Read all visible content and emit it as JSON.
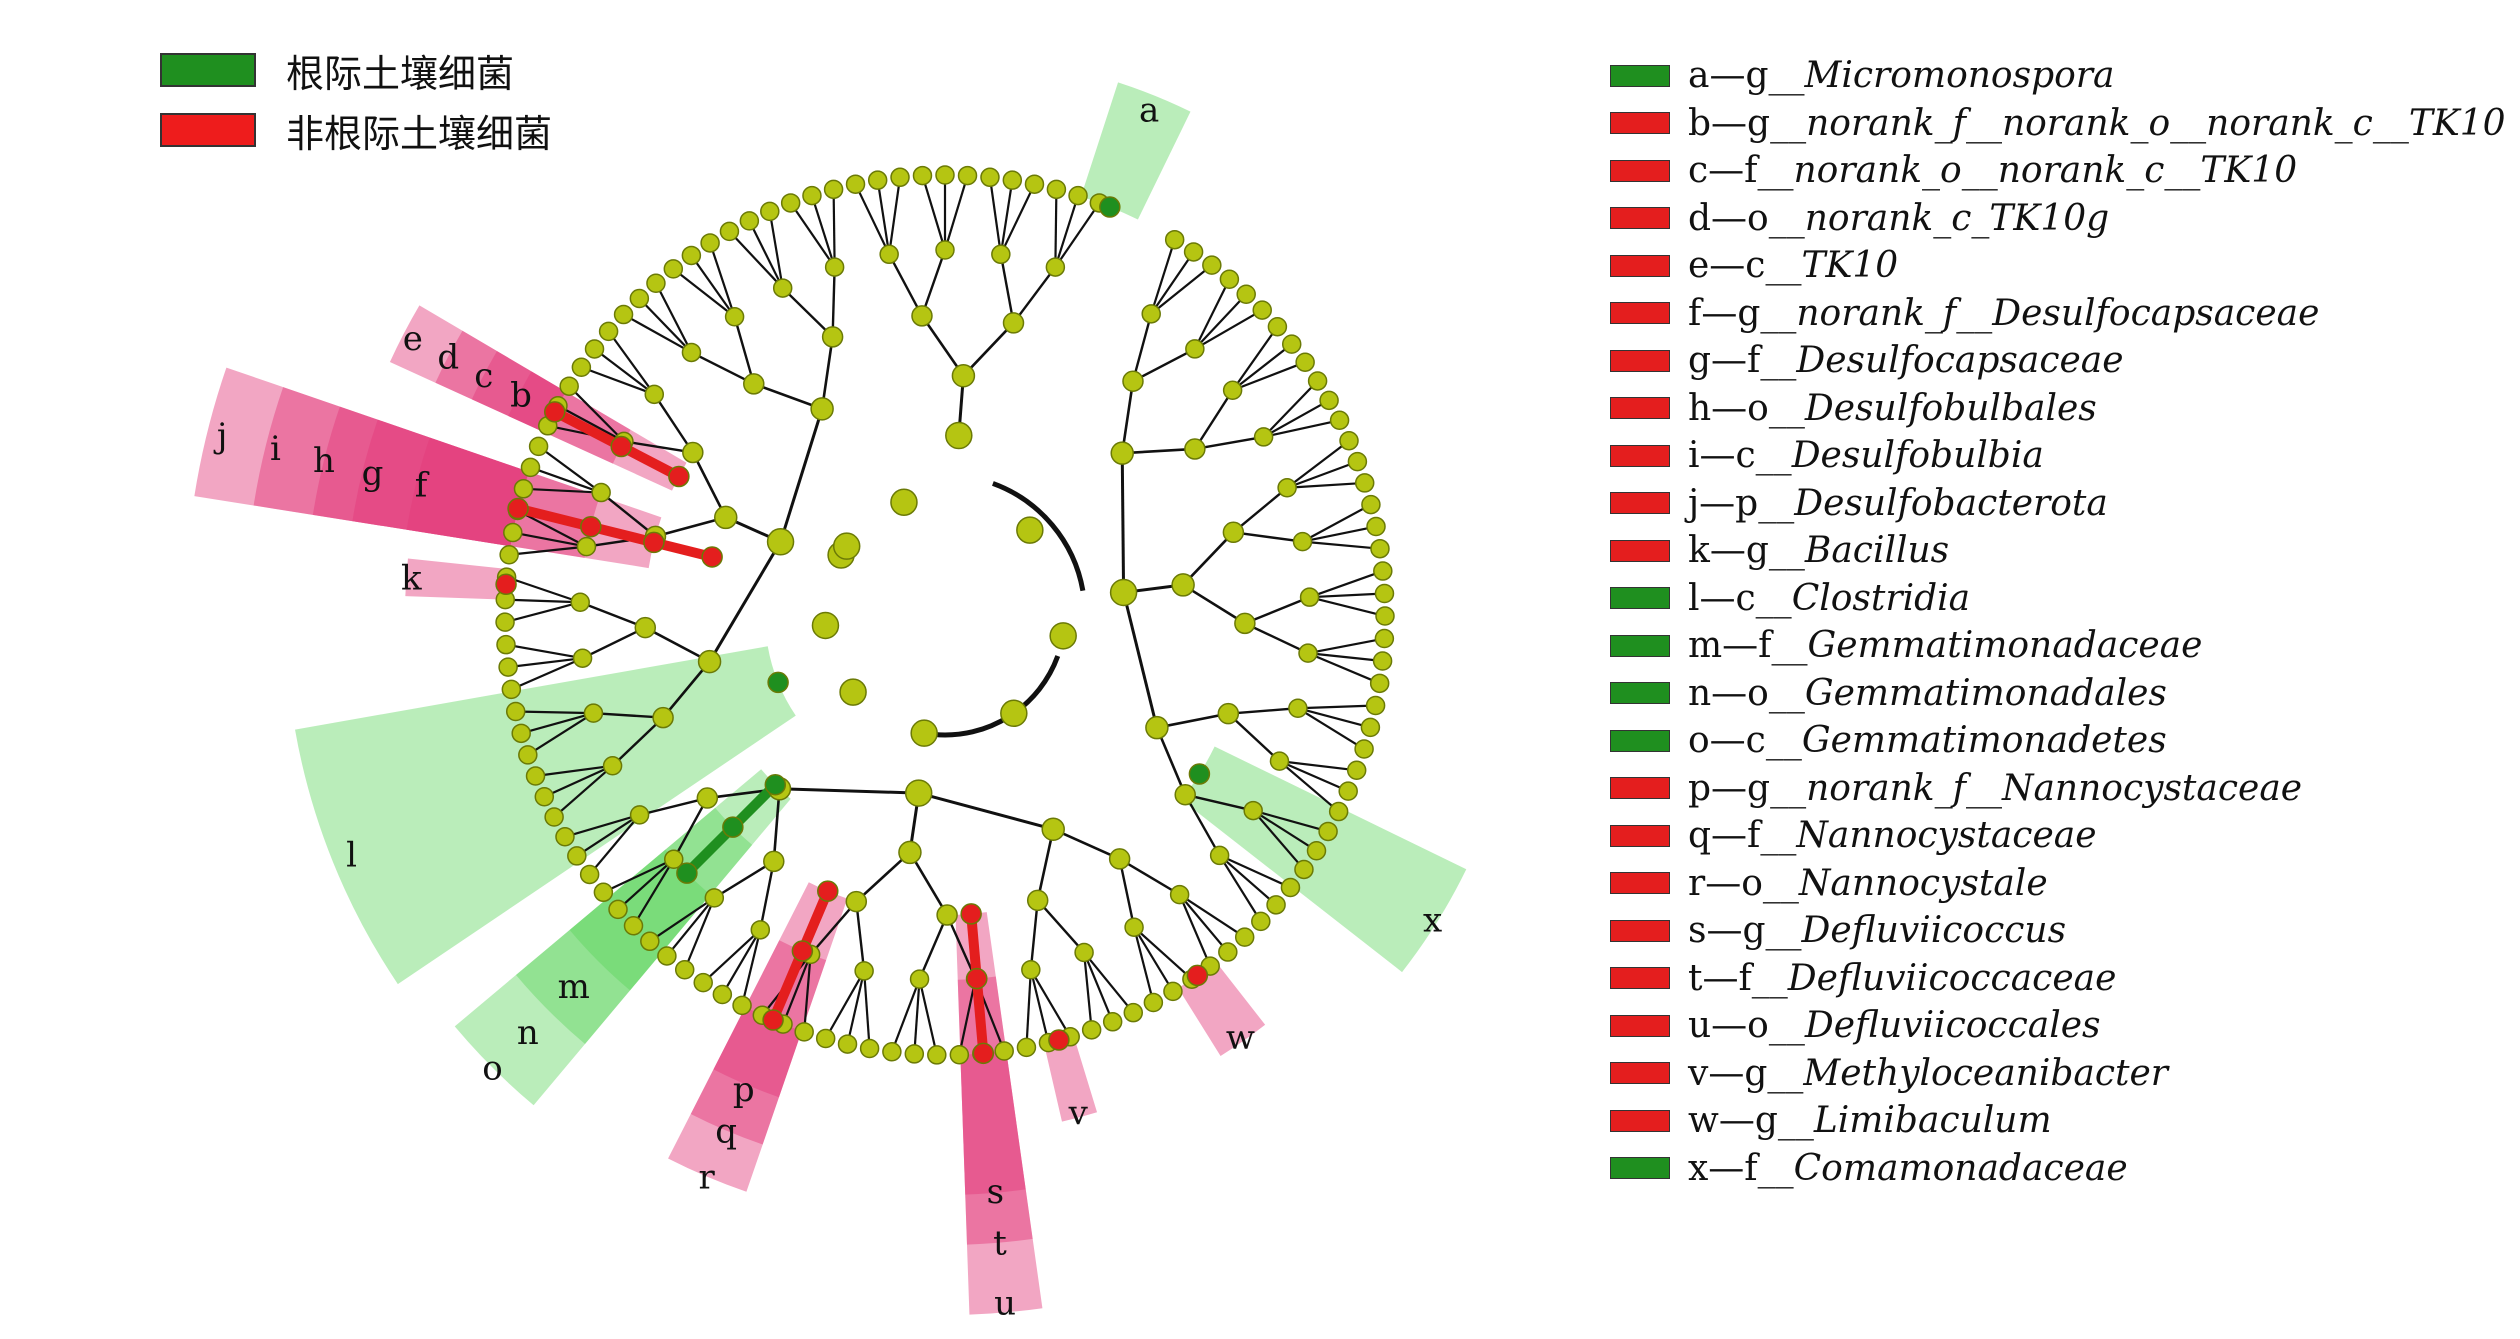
{
  "groups": [
    {
      "label": "根际土壤细菌",
      "color": "#1f8f1f"
    },
    {
      "label": "非根际土壤细菌",
      "color": "#ee1c1c"
    }
  ],
  "colors": {
    "node": "#b5c512",
    "node_stroke": "#6b7a06",
    "green_node": "#1f8f1f",
    "red_node": "#e41e1e",
    "green_shade": "#5ad35a",
    "pink_shade": "#e23a7a",
    "edge": "#111111"
  },
  "taxa": [
    {
      "letter": "a",
      "prefix": "a—g__",
      "name": "Micromonospora",
      "group": "green"
    },
    {
      "letter": "b",
      "prefix": "b—g__",
      "name": "norank_f__norank_o__norank_c__TK10",
      "group": "red"
    },
    {
      "letter": "c",
      "prefix": "c—f__",
      "name": "norank_o__norank_c__TK10",
      "group": "red"
    },
    {
      "letter": "d",
      "prefix": "d—o__",
      "name": "norank_c_TK10g",
      "group": "red"
    },
    {
      "letter": "e",
      "prefix": "e—c__",
      "name": "TK10",
      "group": "red"
    },
    {
      "letter": "f",
      "prefix": "f—g__",
      "name": "norank_f__Desulfocapsaceae",
      "group": "red"
    },
    {
      "letter": "g",
      "prefix": "g—f__",
      "name": "Desulfocapsaceae",
      "group": "red"
    },
    {
      "letter": "h",
      "prefix": "h—o__",
      "name": "Desulfobulbales",
      "group": "red"
    },
    {
      "letter": "i",
      "prefix": "i—c__",
      "name": "Desulfobulbia",
      "group": "red"
    },
    {
      "letter": "j",
      "prefix": "j—p__",
      "name": "Desulfobacterota",
      "group": "red"
    },
    {
      "letter": "k",
      "prefix": "k—g__",
      "name": "Bacillus",
      "group": "red"
    },
    {
      "letter": "l",
      "prefix": "l—c__",
      "name": "Clostridia",
      "group": "green"
    },
    {
      "letter": "m",
      "prefix": "m—f__",
      "name": "Gemmatimonadaceae",
      "group": "green"
    },
    {
      "letter": "n",
      "prefix": "n—o__",
      "name": "Gemmatimonadales",
      "group": "green"
    },
    {
      "letter": "o",
      "prefix": "o—c__",
      "name": "Gemmatimonadetes",
      "group": "green"
    },
    {
      "letter": "p",
      "prefix": "p—g__",
      "name": "norank_f__Nannocystaceae",
      "group": "red"
    },
    {
      "letter": "q",
      "prefix": "q—f__",
      "name": "Nannocystaceae",
      "group": "red"
    },
    {
      "letter": "r",
      "prefix": "r—o__",
      "name": "Nannocystale",
      "group": "red"
    },
    {
      "letter": "s",
      "prefix": "s—g__",
      "name": "Defluviicoccus",
      "group": "red"
    },
    {
      "letter": "t",
      "prefix": "t—f__",
      "name": "Defluviicoccaceae",
      "group": "red"
    },
    {
      "letter": "u",
      "prefix": "u—o__",
      "name": "Defluviicoccales",
      "group": "red"
    },
    {
      "letter": "v",
      "prefix": "v—g__",
      "name": "Methyloceanibacter",
      "group": "red"
    },
    {
      "letter": "w",
      "prefix": "w—g__",
      "name": "Limibaculum",
      "group": "red"
    },
    {
      "letter": "x",
      "prefix": "x—f__",
      "name": "Comamonadaceae",
      "group": "green"
    }
  ]
}
